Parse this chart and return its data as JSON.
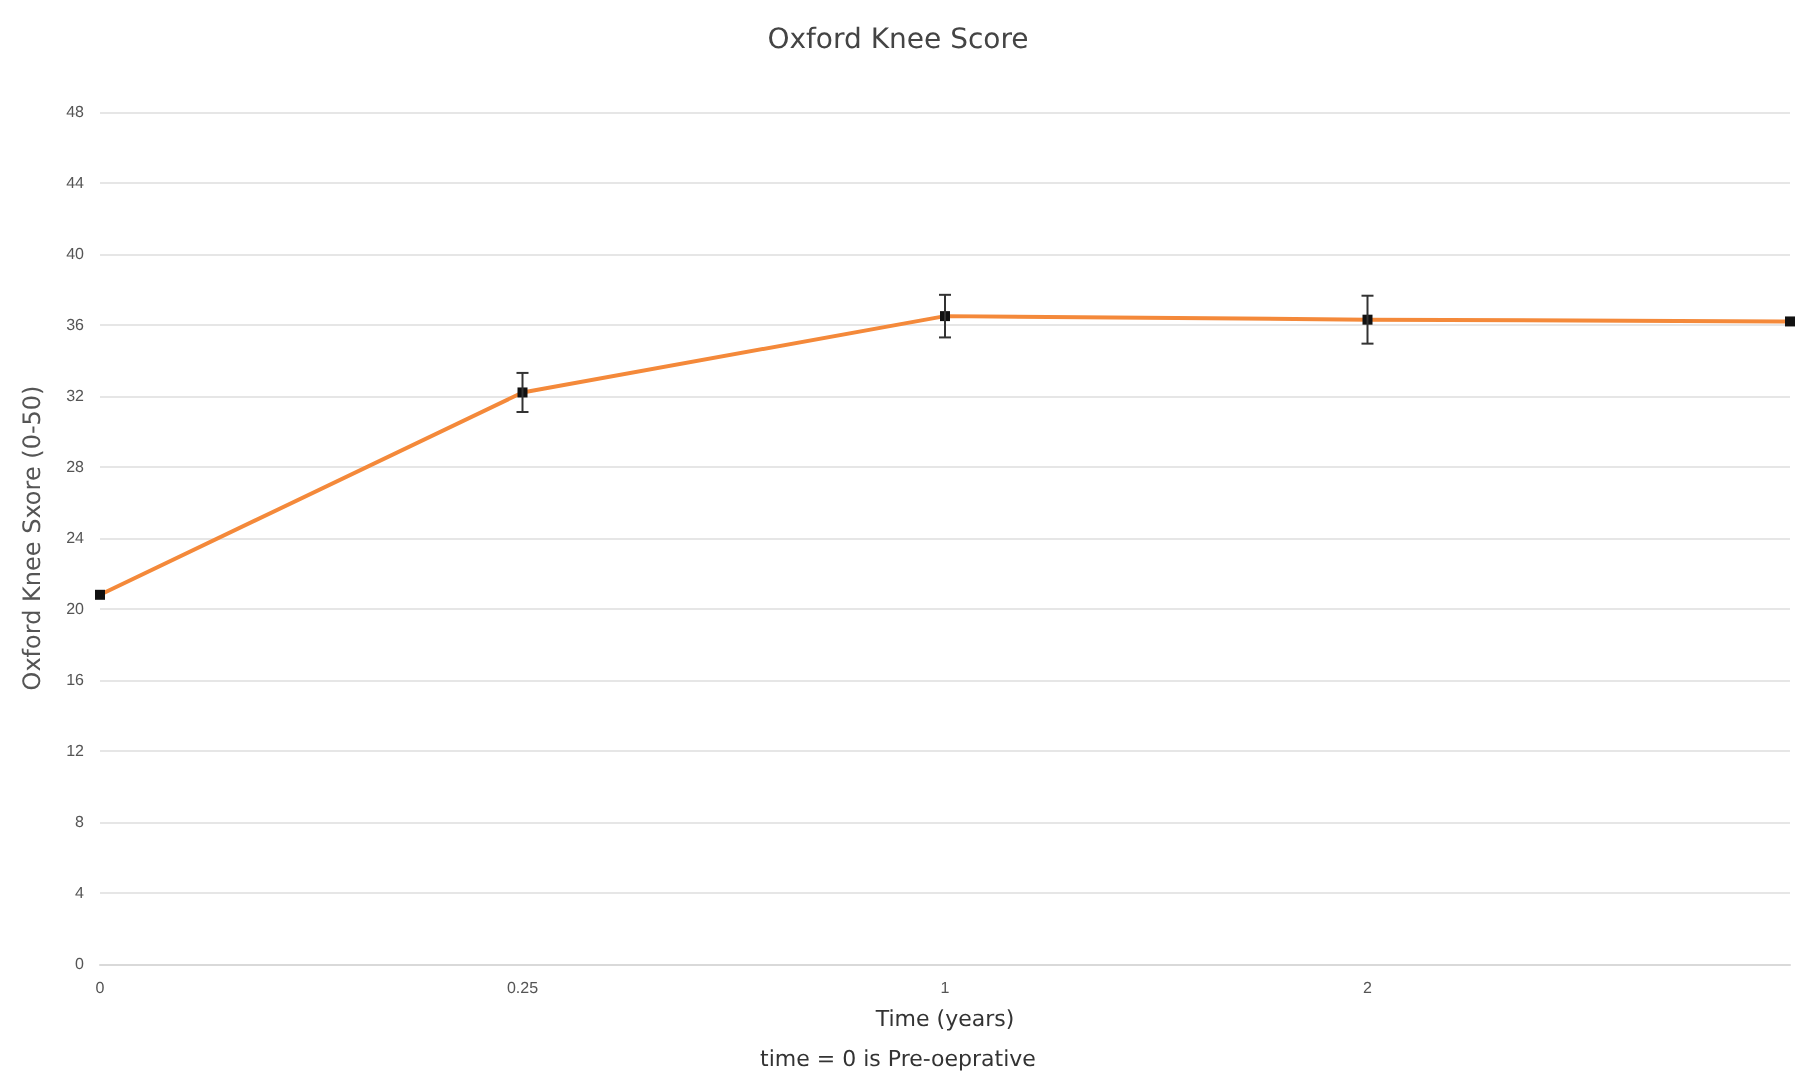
{
  "chart_data": {
    "type": "line",
    "title": "Oxford Knee Score",
    "xlabel": "Time (years)",
    "ylabel": "Oxford Knee Sxore (0-50)",
    "annotations": [
      "time = 0 is Pre-oeprative"
    ],
    "categories": [
      "0",
      "0.25",
      "1",
      "2",
      null
    ],
    "series": [
      {
        "color": "#f4893a",
        "values": [
          20.8,
          32.2,
          36.5,
          36.3,
          36.2
        ],
        "errors": [
          null,
          1.1,
          1.2,
          1.35,
          null
        ]
      }
    ],
    "ylim": [
      0,
      48
    ],
    "yticks": [
      0,
      4,
      8,
      12,
      16,
      20,
      24,
      28,
      32,
      36,
      40,
      44,
      48
    ],
    "grid": "y",
    "marker": "square",
    "line_style": "solid"
  }
}
